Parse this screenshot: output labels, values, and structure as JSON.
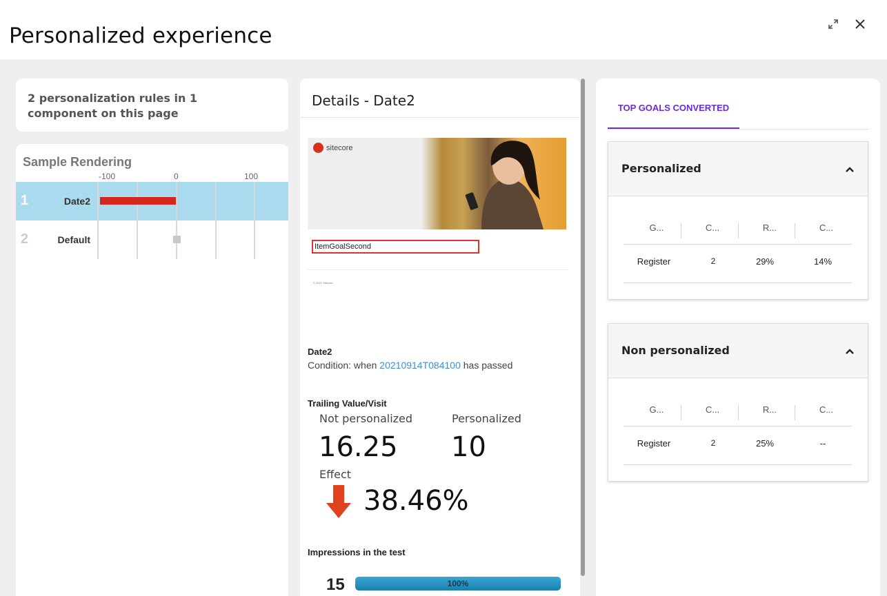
{
  "header": {
    "title": "Personalized experience",
    "expand_icon": "expand-icon",
    "close_icon": "close-icon"
  },
  "summary": {
    "text": "2 personalization rules in 1 component on this page"
  },
  "rendering": {
    "title": "Sample Rendering",
    "axis_ticks": [
      "-100",
      "0",
      "100"
    ],
    "rows": [
      {
        "index": "1",
        "name": "Date2",
        "value": -100,
        "selected": true
      },
      {
        "index": "2",
        "name": "Default",
        "value": 0,
        "selected": false
      }
    ],
    "bar_color": "#d4281f",
    "selected_bg": "#a9daee"
  },
  "details": {
    "title": "Details - Date2",
    "preview": {
      "logo_text": "sitecore",
      "goal_label": "ItemGoalSecond",
      "footer": "© 2021 Sitecore"
    },
    "variant_name": "Date2",
    "condition_prefix": "Condition: when",
    "condition_link": "20210914T084100",
    "condition_suffix": "has passed",
    "trailing_title": "Trailing Value/Visit",
    "not_personalized_label": "Not personalized",
    "not_personalized_value": "16.25",
    "personalized_label": "Personalized",
    "personalized_value": "10",
    "effect_label": "Effect",
    "effect_value": "38.46%",
    "effect_direction": "down",
    "impressions_title": "Impressions in the test",
    "impressions_count": "15",
    "impressions_pct": "100%",
    "impressions_fraction": 1.0
  },
  "goals": {
    "tab_label": "TOP GOALS CONVERTED",
    "accent": "#6c2bd9",
    "panels": [
      {
        "title": "Personalized",
        "headers": [
          "G...",
          "C...",
          "R...",
          "C..."
        ],
        "rows": [
          [
            "Register",
            "2",
            "29%",
            "14%"
          ]
        ]
      },
      {
        "title": "Non personalized",
        "headers": [
          "G...",
          "C...",
          "R...",
          "C..."
        ],
        "rows": [
          [
            "Register",
            "2",
            "25%",
            "--"
          ]
        ]
      }
    ]
  }
}
